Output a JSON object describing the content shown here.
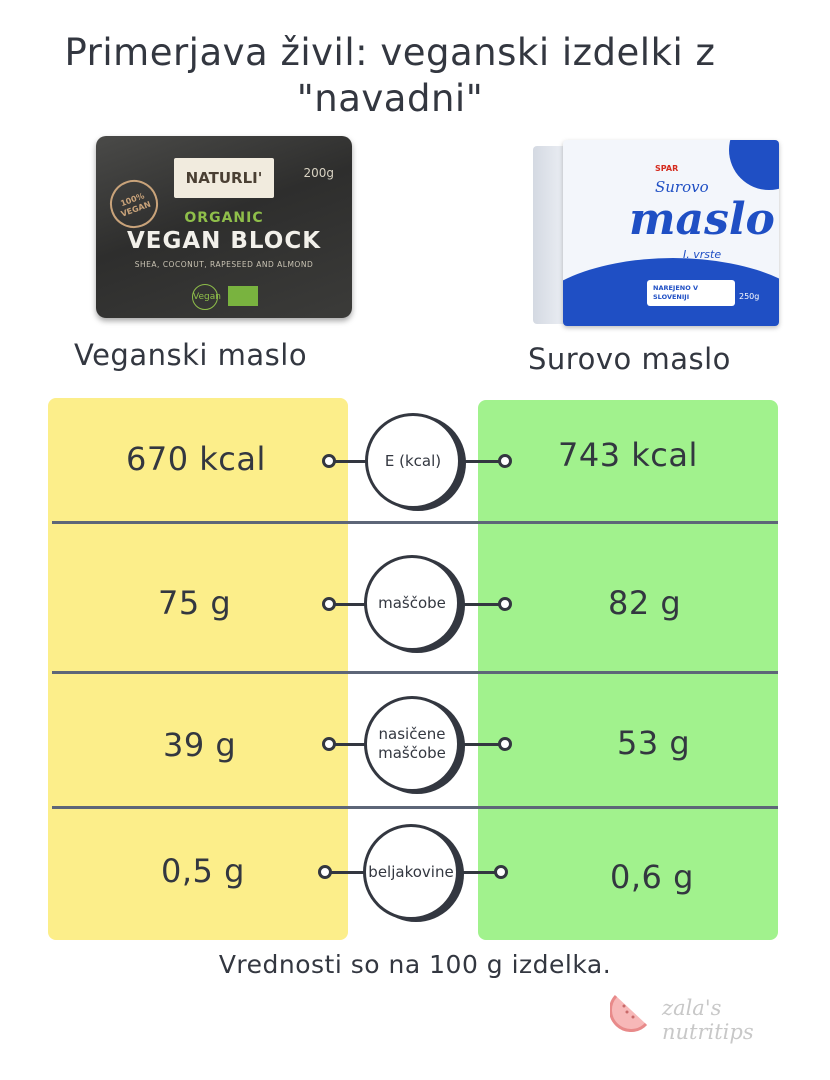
{
  "title": "Primerjava živil: veganski izdelki z \"navadni\"",
  "products": {
    "left": {
      "name": "Veganski maslo",
      "package": {
        "brand": "NATURLI'",
        "weight": "200g",
        "badge": "100% VEGAN",
        "organic": "ORGANIC",
        "product": "VEGAN BLOCK",
        "ingredients": "SHEA, COCONUT, RAPESEED AND ALMOND",
        "logo": "Vegan"
      }
    },
    "right": {
      "name": "Surovo maslo",
      "package": {
        "brand": "SPAR",
        "line1": "Surovo",
        "line2": "maslo",
        "line3": "I. vrste",
        "label": "NAREJENO V SLOVENIJI",
        "weight": "250g"
      }
    }
  },
  "rows": [
    {
      "label": "E (kcal)",
      "left": "670 kcal",
      "right": "743 kcal"
    },
    {
      "label": "maščobe",
      "left": "75 g",
      "right": "82 g"
    },
    {
      "label": "nasičene maščobe",
      "left": "39 g",
      "right": "53 g"
    },
    {
      "label": "beljakovine",
      "left": "0,5 g",
      "right": "0,6 g"
    }
  ],
  "footnote": "Vrednosti so na 100 g izdelka.",
  "signature": "zala's nutritips",
  "colors": {
    "left_column": "#fcee8a",
    "right_column": "#a1f28d",
    "text": "#333740",
    "divider": "#5d6678"
  }
}
